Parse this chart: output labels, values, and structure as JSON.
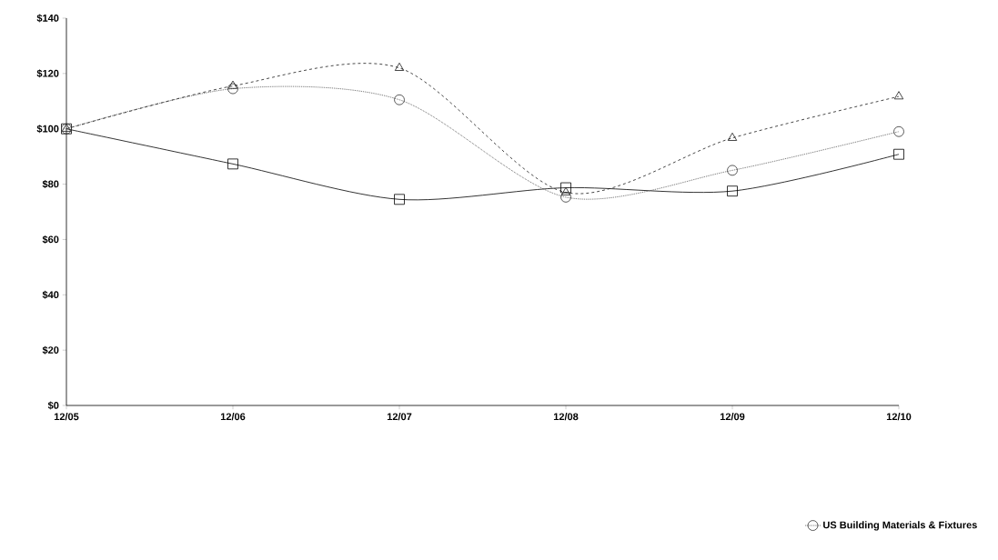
{
  "chart_data": {
    "type": "line",
    "categories": [
      "12/05",
      "12/06",
      "12/07",
      "12/08",
      "12/09",
      "12/10"
    ],
    "series": [
      {
        "color": "#000000",
        "marker": "square",
        "line_style": "solid",
        "values": [
          100,
          87.3,
          74.5,
          78.7,
          77.5,
          90.8
        ]
      },
      {
        "color": "#1a1a1a",
        "marker": "triangle",
        "line_style": "dashed",
        "values": [
          100,
          115.5,
          122,
          77,
          96.7,
          111.7
        ]
      },
      {
        "name": "US Building Materials & Fixtures",
        "color": "#333333",
        "marker": "circle",
        "line_style": "dotted",
        "values": [
          100,
          114.5,
          110.5,
          75.3,
          85,
          99
        ]
      }
    ],
    "ylim": [
      0,
      140
    ],
    "yticks": [
      {
        "value": 0,
        "label": "$0"
      },
      {
        "value": 20,
        "label": "$20"
      },
      {
        "value": 40,
        "label": "$40"
      },
      {
        "value": 60,
        "label": "$60"
      },
      {
        "value": 80,
        "label": "$80"
      },
      {
        "value": 100,
        "label": "$100"
      },
      {
        "value": 120,
        "label": "$120"
      },
      {
        "value": 140,
        "label": "$140"
      }
    ],
    "grid": false,
    "legend": "bottom"
  }
}
